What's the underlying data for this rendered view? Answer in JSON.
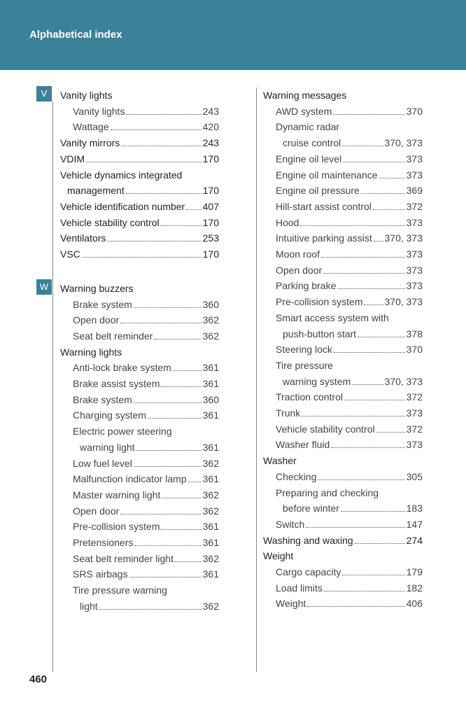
{
  "header": {
    "title": "Alphabetical index"
  },
  "columns": [
    {
      "sections": [
        {
          "letter": "V",
          "entries": [
            {
              "text": "Vanity lights",
              "items": [
                {
                  "text": "Vanity lights",
                  "page": "243"
                },
                {
                  "text": "Wattage",
                  "page": "420"
                }
              ]
            },
            {
              "text": "Vanity mirrors",
              "page": "243"
            },
            {
              "text": "VDIM",
              "page": "170"
            },
            {
              "text": "Vehicle dynamics integrated",
              "cont": "management",
              "page": "170"
            },
            {
              "text": "Vehicle identification number",
              "page": "407"
            },
            {
              "text": "Vehicle stability control",
              "page": "170"
            },
            {
              "text": "Ventilators",
              "page": "253"
            },
            {
              "text": "VSC",
              "page": "170"
            }
          ]
        },
        {
          "letter": "W",
          "entries": [
            {
              "text": "Warning buzzers",
              "items": [
                {
                  "text": "Brake system",
                  "page": "360"
                },
                {
                  "text": "Open door",
                  "page": "362"
                },
                {
                  "text": "Seat belt reminder",
                  "page": "362"
                }
              ]
            },
            {
              "text": "Warning lights",
              "items": [
                {
                  "text": "Anti-lock brake system",
                  "page": "361"
                },
                {
                  "text": "Brake assist system",
                  "page": "361"
                },
                {
                  "text": "Brake system",
                  "page": "360"
                },
                {
                  "text": "Charging system",
                  "page": "361"
                },
                {
                  "text": "Electric power steering",
                  "cont": "warning light",
                  "page": "361"
                },
                {
                  "text": "Low fuel level",
                  "page": "362"
                },
                {
                  "text": "Malfunction indicator lamp",
                  "page": "361"
                },
                {
                  "text": "Master warning light",
                  "page": "362"
                },
                {
                  "text": "Open door",
                  "page": "362"
                },
                {
                  "text": "Pre-collision system",
                  "page": "361"
                },
                {
                  "text": "Pretensioners",
                  "page": "361"
                },
                {
                  "text": "Seat belt reminder light",
                  "page": "362"
                },
                {
                  "text": "SRS airbags",
                  "page": "361"
                },
                {
                  "text": "Tire pressure warning",
                  "cont": "light",
                  "page": "362"
                }
              ]
            }
          ]
        }
      ]
    },
    {
      "sections": [
        {
          "entries": [
            {
              "text": "Warning messages",
              "items": [
                {
                  "text": "AWD system",
                  "page": "370"
                },
                {
                  "text": "Dynamic radar",
                  "cont": "cruise control",
                  "page": "370, 373"
                },
                {
                  "text": "Engine oil level",
                  "page": "373"
                },
                {
                  "text": "Engine oil maintenance",
                  "page": "373"
                },
                {
                  "text": "Engine oil pressure",
                  "page": "369"
                },
                {
                  "text": "Hill-start assist control",
                  "page": "372"
                },
                {
                  "text": "Hood",
                  "page": "373"
                },
                {
                  "text": "Intuitive parking assist",
                  "page": "370, 373"
                },
                {
                  "text": "Moon roof",
                  "page": "373"
                },
                {
                  "text": "Open door",
                  "page": "373"
                },
                {
                  "text": "Parking brake",
                  "page": "373"
                },
                {
                  "text": "Pre-collision system",
                  "page": "370, 373"
                },
                {
                  "text": "Smart access system with",
                  "cont": "push-button start",
                  "page": "378"
                },
                {
                  "text": "Steering lock",
                  "page": "370"
                },
                {
                  "text": "Tire pressure",
                  "cont": "warning system",
                  "page": "370, 373"
                },
                {
                  "text": "Traction control",
                  "page": "372"
                },
                {
                  "text": "Trunk",
                  "page": "373"
                },
                {
                  "text": "Vehicle stability control",
                  "page": "372"
                },
                {
                  "text": "Washer fluid",
                  "page": "373"
                }
              ]
            },
            {
              "text": "Washer",
              "items": [
                {
                  "text": "Checking",
                  "page": "305"
                },
                {
                  "text": "Preparing and checking",
                  "cont": "before winter",
                  "page": "183"
                },
                {
                  "text": "Switch",
                  "page": "147"
                }
              ]
            },
            {
              "text": "Washing and waxing",
              "page": "274"
            },
            {
              "text": "Weight",
              "items": [
                {
                  "text": "Cargo capacity",
                  "page": "179"
                },
                {
                  "text": "Load limits",
                  "page": "182"
                },
                {
                  "text": "Weight",
                  "page": "406"
                }
              ]
            }
          ]
        }
      ]
    }
  ],
  "footer": {
    "page_number": "460"
  }
}
